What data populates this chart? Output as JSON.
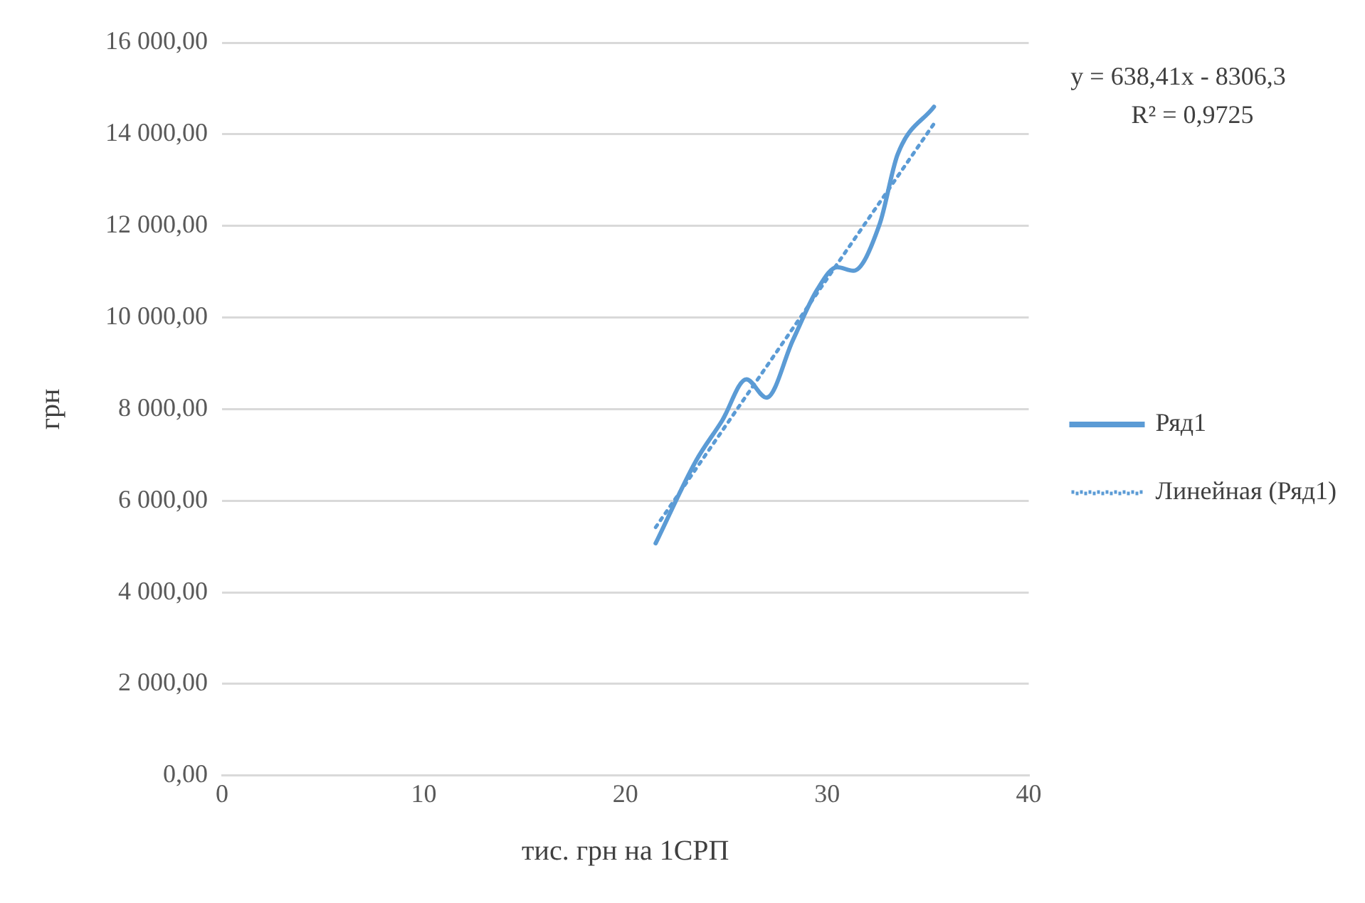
{
  "chart_data": {
    "type": "scatter",
    "xlabel": "тис. грн на 1СРП",
    "ylabel": "грн",
    "xlim": [
      0,
      40
    ],
    "xticks": [
      0,
      10,
      20,
      30,
      40
    ],
    "ylim": [
      0,
      16000
    ],
    "yticks": [
      {
        "value": 0,
        "label": "0,00"
      },
      {
        "value": 2000,
        "label": "2 000,00"
      },
      {
        "value": 4000,
        "label": "4 000,00"
      },
      {
        "value": 6000,
        "label": "6 000,00"
      },
      {
        "value": 8000,
        "label": "8 000,00"
      },
      {
        "value": 10000,
        "label": "10 000,00"
      },
      {
        "value": 12000,
        "label": "12 000,00"
      },
      {
        "value": 14000,
        "label": "14 000,00"
      },
      {
        "value": 16000,
        "label": "16 000,00"
      }
    ],
    "grid": "y",
    "legend": "right",
    "marker": "none",
    "annotations": [
      "y = 638,41x - 8306,3",
      "R² = 0,9725"
    ],
    "series": [
      {
        "name": "Ряд1",
        "type": "line",
        "color": "#5b9bd5",
        "line_style": "solid",
        "x": [
          21.5,
          23.5,
          24.8,
          26.0,
          27.0,
          28.3,
          29.5,
          30.5,
          31.3,
          32.6,
          33.5,
          35.3
        ],
        "values": [
          5070,
          6870,
          7750,
          8650,
          8250,
          9500,
          10600,
          11100,
          11020,
          12030,
          13560,
          14600
        ]
      },
      {
        "name": "Линейная (Ряд1)",
        "type": "line",
        "color": "#5b9bd5",
        "line_style": "dotted",
        "x": [
          21.5,
          35.3
        ],
        "values": [
          5420,
          14230
        ]
      }
    ]
  }
}
